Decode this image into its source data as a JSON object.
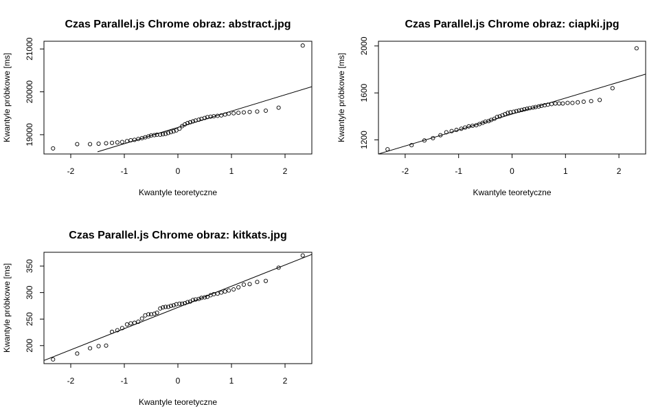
{
  "chart_data": [
    {
      "type": "scatter",
      "title": "Czas Parallel.js Chrome obraz:  abstract.jpg",
      "xlabel": "Kwantyle teoretyczne",
      "ylabel": "Kwantyle próbkowe [ms]",
      "xlim": [
        -2.5,
        2.5
      ],
      "ylim": [
        18550,
        21180
      ],
      "xticks": [
        -2,
        -1,
        0,
        1,
        2
      ],
      "yticks": [
        19000,
        20000,
        21000
      ],
      "grid": false,
      "qqline": {
        "x": [
          -1.5,
          2.5
        ],
        "y": [
          18600,
          20120
        ]
      },
      "points": {
        "x": [
          -2.33,
          -1.88,
          -1.64,
          -1.48,
          -1.34,
          -1.23,
          -1.13,
          -1.04,
          -0.95,
          -0.88,
          -0.81,
          -0.74,
          -0.67,
          -0.61,
          -0.55,
          -0.5,
          -0.44,
          -0.39,
          -0.33,
          -0.28,
          -0.23,
          -0.18,
          -0.13,
          -0.08,
          -0.03,
          0.03,
          0.08,
          0.13,
          0.18,
          0.23,
          0.28,
          0.33,
          0.39,
          0.44,
          0.5,
          0.55,
          0.61,
          0.67,
          0.74,
          0.81,
          0.88,
          0.95,
          1.04,
          1.13,
          1.23,
          1.34,
          1.48,
          1.64,
          1.88,
          2.33
        ],
        "y": [
          18680,
          18780,
          18780,
          18790,
          18800,
          18810,
          18820,
          18830,
          18850,
          18870,
          18880,
          18900,
          18920,
          18940,
          18960,
          18980,
          18990,
          19000,
          19000,
          19010,
          19020,
          19040,
          19060,
          19080,
          19100,
          19140,
          19200,
          19240,
          19270,
          19290,
          19310,
          19330,
          19350,
          19370,
          19390,
          19410,
          19420,
          19430,
          19440,
          19450,
          19470,
          19490,
          19500,
          19510,
          19520,
          19530,
          19540,
          19560,
          19630,
          21080
        ]
      }
    },
    {
      "type": "scatter",
      "title": "Czas Parallel.js Chrome obraz:  ciapki.jpg",
      "xlabel": "Kwantyle teoretyczne",
      "ylabel": "Kwantyle próbkowe [ms]",
      "xlim": [
        -2.5,
        2.5
      ],
      "ylim": [
        1080,
        2040
      ],
      "xticks": [
        -2,
        -1,
        0,
        1,
        2
      ],
      "yticks": [
        1200,
        1600,
        2000
      ],
      "grid": false,
      "qqline": {
        "x": [
          -2.5,
          2.5
        ],
        "y": [
          1080,
          1760
        ]
      },
      "points": {
        "x": [
          -2.33,
          -1.88,
          -1.64,
          -1.48,
          -1.34,
          -1.23,
          -1.13,
          -1.04,
          -0.95,
          -0.88,
          -0.81,
          -0.74,
          -0.67,
          -0.61,
          -0.55,
          -0.5,
          -0.44,
          -0.39,
          -0.33,
          -0.28,
          -0.23,
          -0.18,
          -0.13,
          -0.08,
          -0.03,
          0.03,
          0.08,
          0.13,
          0.18,
          0.23,
          0.28,
          0.33,
          0.39,
          0.44,
          0.5,
          0.55,
          0.61,
          0.67,
          0.74,
          0.81,
          0.88,
          0.95,
          1.04,
          1.13,
          1.23,
          1.34,
          1.48,
          1.64,
          1.88,
          2.33
        ],
        "y": [
          1120,
          1155,
          1195,
          1215,
          1240,
          1265,
          1275,
          1285,
          1295,
          1305,
          1315,
          1320,
          1325,
          1335,
          1345,
          1355,
          1360,
          1370,
          1380,
          1395,
          1400,
          1410,
          1420,
          1430,
          1435,
          1440,
          1445,
          1450,
          1455,
          1460,
          1465,
          1470,
          1475,
          1480,
          1485,
          1490,
          1495,
          1500,
          1505,
          1510,
          1510,
          1510,
          1515,
          1515,
          1520,
          1525,
          1530,
          1540,
          1640,
          1980
        ]
      }
    },
    {
      "type": "scatter",
      "title": "Czas Parallel.js Chrome obraz:  kitkats.jpg",
      "xlabel": "Kwantyle teoretyczne",
      "ylabel": "Kwantyle próbkowe [ms]",
      "xlim": [
        -2.5,
        2.5
      ],
      "ylim": [
        166,
        376
      ],
      "xticks": [
        -2,
        -1,
        0,
        1,
        2
      ],
      "yticks": [
        200,
        250,
        300,
        350
      ],
      "grid": false,
      "qqline": {
        "x": [
          -2.5,
          2.5
        ],
        "y": [
          172,
          372
        ]
      },
      "points": {
        "x": [
          -2.33,
          -1.88,
          -1.64,
          -1.48,
          -1.34,
          -1.23,
          -1.13,
          -1.04,
          -0.95,
          -0.88,
          -0.81,
          -0.74,
          -0.67,
          -0.61,
          -0.55,
          -0.5,
          -0.44,
          -0.39,
          -0.33,
          -0.28,
          -0.23,
          -0.18,
          -0.13,
          -0.08,
          -0.03,
          0.03,
          0.08,
          0.13,
          0.18,
          0.23,
          0.28,
          0.33,
          0.39,
          0.44,
          0.5,
          0.55,
          0.61,
          0.67,
          0.74,
          0.81,
          0.88,
          0.95,
          1.04,
          1.13,
          1.23,
          1.34,
          1.48,
          1.64,
          1.88,
          2.33
        ],
        "y": [
          174,
          185,
          195,
          199,
          200,
          226,
          229,
          233,
          240,
          242,
          243,
          245,
          251,
          257,
          259,
          259,
          260,
          262,
          270,
          272,
          273,
          273,
          275,
          276,
          278,
          279,
          279,
          280,
          282,
          283,
          286,
          287,
          288,
          290,
          291,
          292,
          295,
          297,
          298,
          300,
          302,
          304,
          306,
          310,
          315,
          316,
          320,
          322,
          347,
          370
        ]
      }
    }
  ]
}
